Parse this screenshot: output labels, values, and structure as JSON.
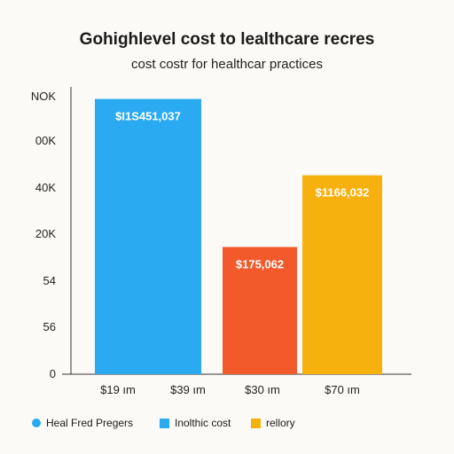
{
  "chart_data": {
    "type": "bar",
    "title": "Gohighlevel cost to lealthcare recres",
    "subtitle": "cost costr for healthcar practices",
    "y_tick_labels": [
      "0",
      "56",
      "54",
      "20K",
      "40K",
      "00K",
      "NOK"
    ],
    "x_tick_labels": [
      "$19 ım",
      "$39 ım",
      "$30 ım",
      "$70 ım"
    ],
    "ylim": [
      0,
      6
    ],
    "bars": [
      {
        "value": 5.95,
        "color": "#2aaaf0",
        "label": "$I1S451,037"
      },
      {
        "value": 2.75,
        "color": "#f25a2c",
        "label": "$175,062"
      },
      {
        "value": 4.3,
        "color": "#f7b10f",
        "label": "$1166,032"
      }
    ],
    "legend": [
      {
        "name": "Heal Fred Pregers",
        "color": "#2aaaf0",
        "shape": "circle"
      },
      {
        "name": "Inolthic cost",
        "color": "#2aaaf0",
        "shape": "square"
      },
      {
        "name": "rellory",
        "color": "#f7b10f",
        "shape": "square"
      }
    ],
    "grid": false
  }
}
